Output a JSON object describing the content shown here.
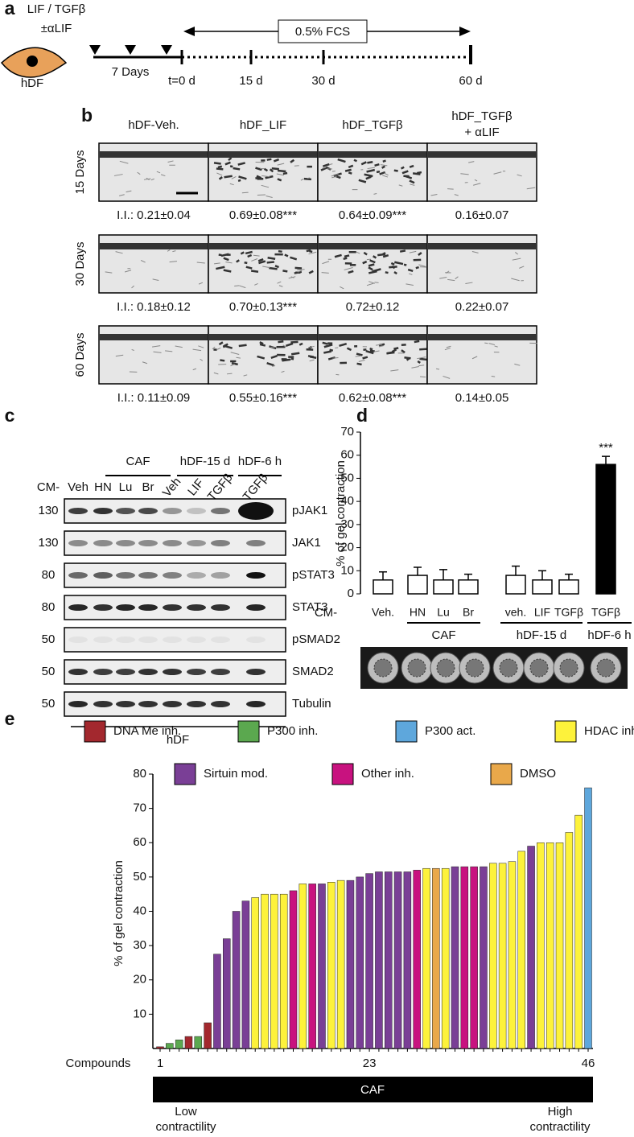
{
  "panel_a": {
    "label": "a",
    "treatment": [
      "LIF / TGFβ",
      "±αLIF"
    ],
    "cell": "hDF",
    "pre_period": "7 Days",
    "timepoints": [
      "t=0 d",
      "15 d",
      "30 d",
      "60 d"
    ],
    "medium": "0.5% FCS"
  },
  "panel_b": {
    "label": "b",
    "columns": [
      [
        "hDF-Veh."
      ],
      [
        "hDF_LIF"
      ],
      [
        "hDF_TGFβ"
      ],
      [
        "hDF_TGFβ",
        "+ αLIF"
      ]
    ],
    "rows": [
      {
        "label": "15 Days",
        "values": [
          "I.I.: 0.21±0.04",
          "0.69±0.08***",
          "0.64±0.09***",
          "0.16±0.07"
        ]
      },
      {
        "label": "30 Days",
        "values": [
          "I.I.: 0.18±0.12",
          "0.70±0.13***",
          "0.72±0.12",
          "0.22±0.07"
        ]
      },
      {
        "label": "60 Days",
        "values": [
          "I.I.: 0.11±0.09",
          "0.55±0.16***",
          "0.62±0.08***",
          "0.14±0.05"
        ]
      }
    ]
  },
  "panel_c": {
    "label": "c",
    "prefix": "CM-",
    "groups": [
      "CAF",
      "hDF-15 d",
      "hDF-6 h"
    ],
    "lanes": [
      "Veh",
      "HN",
      "Lu",
      "Br",
      "Veh",
      "LIF",
      "TGFβ",
      "TGFβ"
    ],
    "blots": [
      {
        "mw": "130",
        "name": "pJAK1"
      },
      {
        "mw": "130",
        "name": "JAK1"
      },
      {
        "mw": "80",
        "name": "pSTAT3"
      },
      {
        "mw": "80",
        "name": "STAT3"
      },
      {
        "mw": "50",
        "name": "pSMAD2"
      },
      {
        "mw": "50",
        "name": "SMAD2"
      },
      {
        "mw": "50",
        "name": "Tubulin"
      }
    ],
    "footer": "hDF"
  },
  "chart_data": [
    {
      "panel_label": "d",
      "type": "bar",
      "ylabel": "% of gel contraction",
      "prefix": "CM-",
      "categories": [
        "Veh.",
        "HN",
        "Lu",
        "Br",
        "veh.",
        "LIF",
        "TGFβ",
        "TGFβ"
      ],
      "values": [
        6,
        8,
        6,
        6,
        8,
        6,
        6,
        56
      ],
      "errors": [
        3.5,
        3.5,
        4.5,
        2.5,
        4,
        4,
        2.5,
        3.5
      ],
      "colors": [
        "#ffffff",
        "#ffffff",
        "#ffffff",
        "#ffffff",
        "#ffffff",
        "#ffffff",
        "#ffffff",
        "#000000"
      ],
      "annotation": "***",
      "group_names": [
        "CAF",
        "hDF-15 d",
        "hDF-6 h"
      ],
      "ylim": [
        0,
        70
      ],
      "yticks": [
        0,
        10,
        20,
        30,
        40,
        50,
        60,
        70
      ]
    },
    {
      "panel_label": "e",
      "type": "bar",
      "ylabel": "% of gel contraction",
      "xlabel": "Compounds",
      "x": [
        1,
        2,
        3,
        4,
        5,
        6,
        7,
        8,
        9,
        10,
        11,
        12,
        13,
        14,
        15,
        16,
        17,
        18,
        19,
        20,
        21,
        22,
        23,
        24,
        25,
        26,
        27,
        28,
        29,
        30,
        31,
        32,
        33,
        34,
        35,
        36,
        37,
        38,
        39,
        40,
        41,
        42,
        43,
        44,
        45,
        46
      ],
      "values": [
        0.5,
        1.5,
        2.5,
        3.5,
        3.5,
        7.5,
        27.5,
        32,
        40,
        43,
        44,
        45,
        45,
        45,
        46,
        48,
        48,
        48,
        48.5,
        49,
        49,
        50,
        51,
        51.5,
        51.5,
        51.5,
        51.5,
        52,
        52.5,
        52.5,
        52.5,
        53,
        53,
        53,
        53,
        54,
        54,
        54.5,
        57.5,
        59,
        60,
        60,
        60,
        63,
        68,
        76
      ],
      "colors": [
        "#a3282e",
        "#5ba84f",
        "#5ba84f",
        "#a3282e",
        "#5ba84f",
        "#a3282e",
        "#7a3f96",
        "#7a3f96",
        "#7a3f96",
        "#7a3f96",
        "#fdf23b",
        "#fdf23b",
        "#fdf23b",
        "#fdf23b",
        "#c8127f",
        "#fdf23b",
        "#c8127f",
        "#7a3f96",
        "#fdf23b",
        "#fdf23b",
        "#7a3f96",
        "#7a3f96",
        "#7a3f96",
        "#7a3f96",
        "#7a3f96",
        "#7a3f96",
        "#7a3f96",
        "#c8127f",
        "#fdf23b",
        "#e9a84a",
        "#fdf23b",
        "#7a3f96",
        "#c8127f",
        "#c8127f",
        "#7a3f96",
        "#fdf23b",
        "#fdf23b",
        "#fdf23b",
        "#fdf23b",
        "#7a3f96",
        "#fdf23b",
        "#fdf23b",
        "#fdf23b",
        "#fdf23b",
        "#fdf23b",
        "#5ea7dc"
      ],
      "legend": [
        {
          "name": "DNA Me inh.",
          "color": "#a3282e"
        },
        {
          "name": "P300 inh.",
          "color": "#5ba84f"
        },
        {
          "name": "P300 act.",
          "color": "#5ea7dc"
        },
        {
          "name": "HDAC inh.",
          "color": "#fdf23b"
        },
        {
          "name": "Sirtuin mod.",
          "color": "#7a3f96"
        },
        {
          "name": "Other inh.",
          "color": "#c8127f"
        },
        {
          "name": "DMSO",
          "color": "#e9a84a"
        }
      ],
      "ylim": [
        0,
        80
      ],
      "yticks": [
        10,
        20,
        30,
        40,
        50,
        60,
        70,
        80
      ],
      "xticks": [
        1,
        23,
        46
      ],
      "band_label": "CAF",
      "low_label": [
        "Low",
        "contractility"
      ],
      "high_label": [
        "High",
        "contractility"
      ]
    }
  ]
}
